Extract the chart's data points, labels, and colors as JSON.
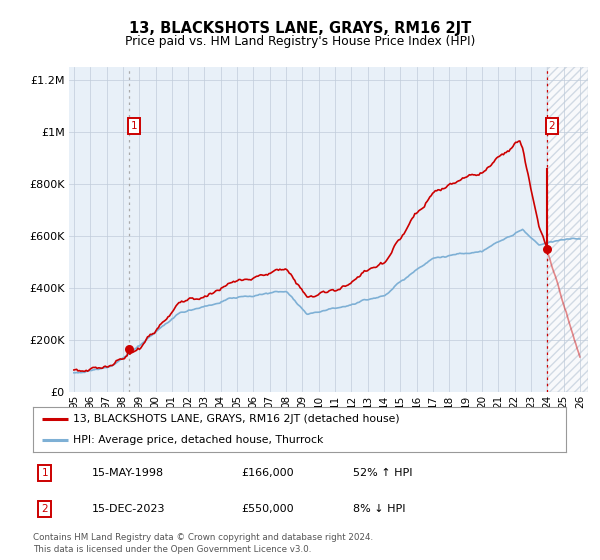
{
  "title": "13, BLACKSHOTS LANE, GRAYS, RM16 2JT",
  "subtitle": "Price paid vs. HM Land Registry's House Price Index (HPI)",
  "legend_line1": "13, BLACKSHOTS LANE, GRAYS, RM16 2JT (detached house)",
  "legend_line2": "HPI: Average price, detached house, Thurrock",
  "annotation1_date": "15-MAY-1998",
  "annotation1_price": "£166,000",
  "annotation1_hpi": "52% ↑ HPI",
  "annotation2_date": "15-DEC-2023",
  "annotation2_price": "£550,000",
  "annotation2_hpi": "8% ↓ HPI",
  "footer": "Contains HM Land Registry data © Crown copyright and database right 2024.\nThis data is licensed under the Open Government Licence v3.0.",
  "sale1_year": 1998.37,
  "sale1_price": 166000,
  "sale2_year": 2023.96,
  "sale2_price": 550000,
  "hpi_color": "#7EB0D5",
  "price_color": "#CC0000",
  "bg_color": "#E8F0F8",
  "hatch_facecolor": "#EAEEF4",
  "grid_color": "#C0CCDA",
  "ylim": [
    0,
    1250000
  ],
  "xlim_start": 1994.7,
  "xlim_end": 2026.5,
  "yticks": [
    0,
    200000,
    400000,
    600000,
    800000,
    1000000,
    1200000
  ],
  "ytick_labels": [
    "£0",
    "£200K",
    "£400K",
    "£600K",
    "£800K",
    "£1M",
    "£1.2M"
  ],
  "xtick_years": [
    1995,
    1996,
    1997,
    1998,
    1999,
    2000,
    2001,
    2002,
    2003,
    2004,
    2005,
    2006,
    2007,
    2008,
    2009,
    2010,
    2011,
    2012,
    2013,
    2014,
    2015,
    2016,
    2017,
    2018,
    2019,
    2020,
    2021,
    2022,
    2023,
    2024,
    2025,
    2026
  ]
}
